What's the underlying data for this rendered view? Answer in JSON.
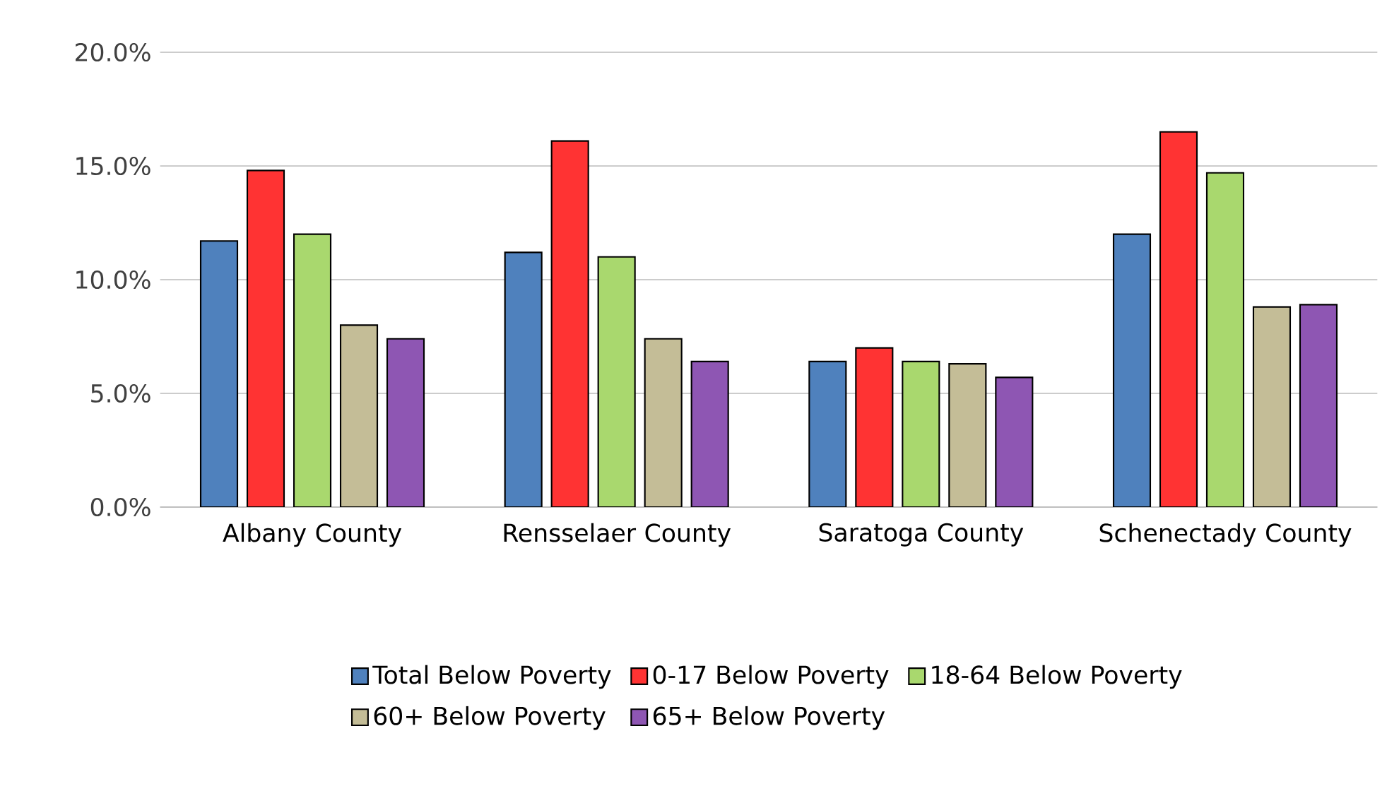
{
  "chart_data": {
    "type": "bar",
    "categories": [
      "Albany County",
      "Rensselaer County",
      "Saratoga County",
      "Schenectady County"
    ],
    "series": [
      {
        "name": "Total Below Poverty",
        "color": "#4f81bd",
        "values": [
          11.7,
          11.2,
          6.4,
          12.0
        ]
      },
      {
        "name": "0-17 Below Poverty",
        "color": "#ff3333",
        "values": [
          14.8,
          16.1,
          7.0,
          16.5
        ]
      },
      {
        "name": "18-64 Below Poverty",
        "color": "#a9d86e",
        "values": [
          12.0,
          11.0,
          6.4,
          14.7
        ]
      },
      {
        "name": "60+ Below Poverty",
        "color": "#c4bd97",
        "values": [
          8.0,
          7.4,
          6.3,
          8.8
        ]
      },
      {
        "name": "65+ Below Poverty",
        "color": "#8e56b3",
        "values": [
          7.4,
          6.4,
          5.7,
          8.9
        ]
      }
    ],
    "ylim": [
      0,
      20
    ],
    "yticks": [
      {
        "value": 0,
        "label": "0.0%"
      },
      {
        "value": 5,
        "label": "5.0%"
      },
      {
        "value": 10,
        "label": "10.0%"
      },
      {
        "value": 15,
        "label": "15.0%"
      },
      {
        "value": 20,
        "label": "20.0%"
      }
    ],
    "grid": "y",
    "legend": "bottom"
  }
}
